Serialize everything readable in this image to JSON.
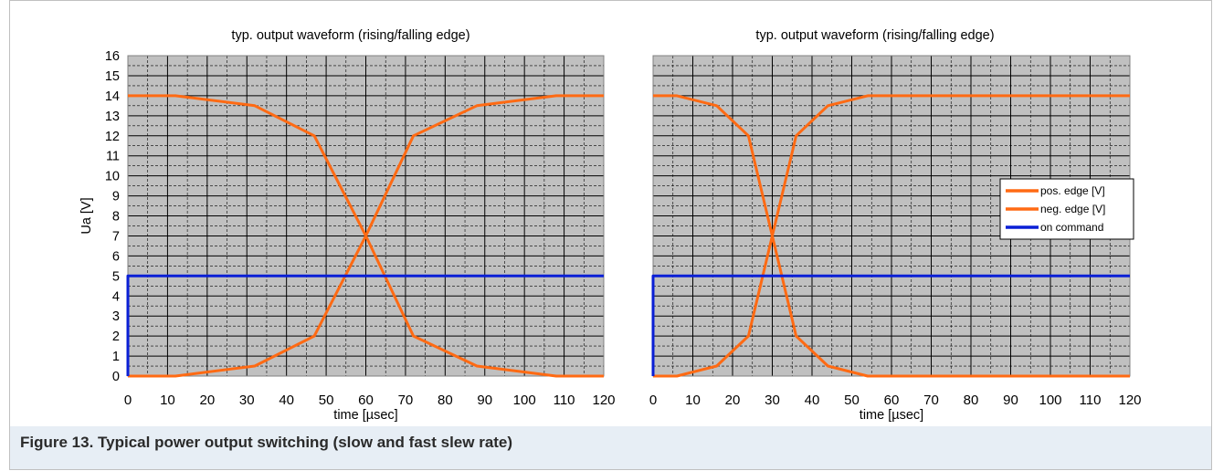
{
  "caption": "Figure 13.  Typical power output switching (slow and fast slew rate)",
  "colors": {
    "pos_edge": "#ff6a13",
    "neg_edge": "#ff6a13",
    "on_command": "#0a1fd6",
    "plot_bg": "#c0c0c0",
    "grid": "#000000"
  },
  "chart_data": [
    {
      "type": "line",
      "title": "typ. output  waveform  (rising/falling  edge)",
      "xlabel": "time [µsec]",
      "ylabel": "Ua [V]",
      "xlim": [
        0,
        120
      ],
      "ylim": [
        0,
        16
      ],
      "x_ticks": [
        "0",
        "10",
        "20",
        "30",
        "40",
        "50",
        "60",
        "70",
        "80",
        "90",
        "100",
        "110",
        "120"
      ],
      "y_ticks": [
        "0",
        "1",
        "2",
        "3",
        "4",
        "5",
        "6",
        "7",
        "8",
        "9",
        "10",
        "11",
        "12",
        "13",
        "14",
        "15",
        "16"
      ],
      "grid": true,
      "legend": null,
      "series": [
        {
          "name": "pos. edge [V]",
          "color_key": "pos_edge",
          "points": [
            [
              0,
              0
            ],
            [
              12,
              0
            ],
            [
              32,
              0.5
            ],
            [
              47,
              2
            ],
            [
              60,
              7
            ],
            [
              72,
              12
            ],
            [
              88,
              13.5
            ],
            [
              108,
              14
            ],
            [
              120,
              14
            ]
          ]
        },
        {
          "name": "neg. edge [V]",
          "color_key": "neg_edge",
          "points": [
            [
              0,
              14
            ],
            [
              12,
              14
            ],
            [
              32,
              13.5
            ],
            [
              47,
              12
            ],
            [
              60,
              7
            ],
            [
              72,
              2
            ],
            [
              88,
              0.5
            ],
            [
              108,
              0
            ],
            [
              120,
              0
            ]
          ]
        },
        {
          "name": "on command",
          "color_key": "on_command",
          "points": [
            [
              0,
              0
            ],
            [
              0,
              5
            ],
            [
              120,
              5
            ]
          ]
        }
      ]
    },
    {
      "type": "line",
      "title": "typ. output waveform (rising/falling edge)",
      "xlabel": "time [µsec]",
      "ylabel": "",
      "xlim": [
        0,
        120
      ],
      "ylim": [
        0,
        16
      ],
      "x_ticks": [
        "0",
        "10",
        "20",
        "30",
        "40",
        "50",
        "60",
        "70",
        "80",
        "90",
        "100",
        "110",
        "120"
      ],
      "y_ticks": [],
      "grid": true,
      "legend": {
        "placement": "right",
        "entries": [
          "pos. edge [V]",
          "neg. edge [V]",
          "on command"
        ]
      },
      "series": [
        {
          "name": "pos. edge [V]",
          "color_key": "pos_edge",
          "points": [
            [
              0,
              0
            ],
            [
              6,
              0
            ],
            [
              16,
              0.5
            ],
            [
              24,
              2
            ],
            [
              30,
              7
            ],
            [
              36,
              12
            ],
            [
              44,
              13.5
            ],
            [
              54,
              14
            ],
            [
              120,
              14
            ]
          ]
        },
        {
          "name": "neg. edge [V]",
          "color_key": "neg_edge",
          "points": [
            [
              0,
              14
            ],
            [
              6,
              14
            ],
            [
              16,
              13.5
            ],
            [
              24,
              12
            ],
            [
              30,
              7
            ],
            [
              36,
              2
            ],
            [
              44,
              0.5
            ],
            [
              54,
              0
            ],
            [
              120,
              0
            ]
          ]
        },
        {
          "name": "on command",
          "color_key": "on_command",
          "points": [
            [
              0,
              0
            ],
            [
              0,
              5
            ],
            [
              120,
              5
            ]
          ]
        }
      ]
    }
  ]
}
